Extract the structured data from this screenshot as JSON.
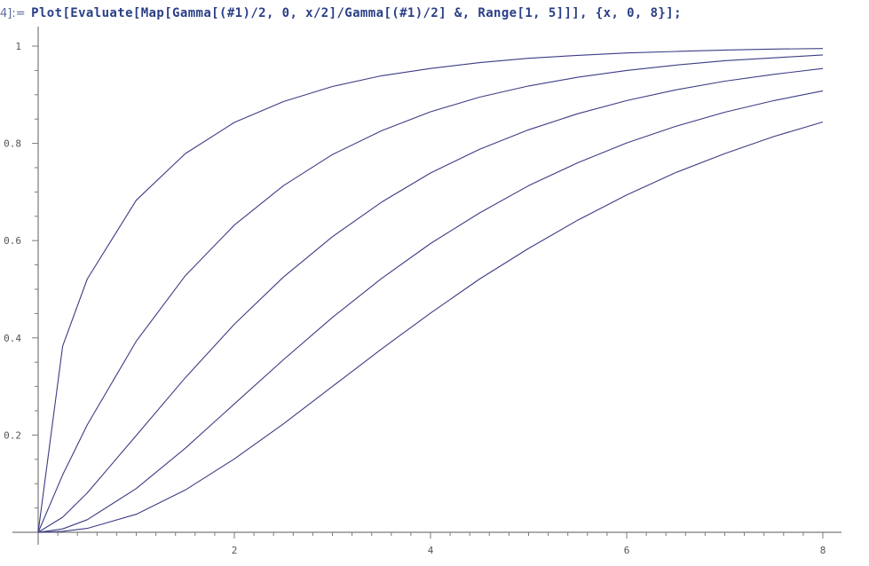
{
  "notebook": {
    "cell_label": "4]:=",
    "input_code": "Plot[Evaluate[Map[Gamma[(#1)/2, 0, x/2]/Gamma[(#1)/2] &, Range[1, 5]]], {x, 0, 8}];"
  },
  "colors": {
    "curve": "#3c3c84",
    "axis": "#7a7a7a",
    "code_text": "#2a3f86",
    "background": "#ffffff"
  },
  "chart_data": {
    "type": "line",
    "title": "",
    "xlabel": "",
    "ylabel": "",
    "xlim": [
      0,
      8.2
    ],
    "ylim": [
      0,
      1.03
    ],
    "x_ticks": [
      2,
      4,
      6,
      8
    ],
    "x_tick_labels": [
      "2",
      "4",
      "6",
      "8"
    ],
    "y_ticks": [
      0.2,
      0.4,
      0.6,
      0.8,
      1
    ],
    "y_tick_labels": [
      "0.2",
      "0.4",
      "0.6",
      "0.8",
      "1"
    ],
    "grid": false,
    "legend": "none",
    "x": [
      0,
      0.25,
      0.5,
      1,
      1.5,
      2,
      2.5,
      3,
      3.5,
      4,
      4.5,
      5,
      5.5,
      6,
      6.5,
      7,
      7.5,
      8
    ],
    "series": [
      {
        "values": [
          0,
          0.383,
          0.521,
          0.683,
          0.779,
          0.843,
          0.886,
          0.917,
          0.939,
          0.954,
          0.966,
          0.975,
          0.981,
          0.986,
          0.989,
          0.992,
          0.994,
          0.995
        ]
      },
      {
        "values": [
          0,
          0.118,
          0.221,
          0.393,
          0.528,
          0.632,
          0.713,
          0.777,
          0.826,
          0.865,
          0.895,
          0.918,
          0.936,
          0.95,
          0.961,
          0.97,
          0.976,
          0.982
        ]
      },
      {
        "values": [
          0,
          0.031,
          0.081,
          0.199,
          0.318,
          0.428,
          0.525,
          0.608,
          0.679,
          0.739,
          0.788,
          0.828,
          0.861,
          0.888,
          0.91,
          0.928,
          0.942,
          0.954
        ]
      },
      {
        "values": [
          0,
          0.007,
          0.026,
          0.09,
          0.173,
          0.264,
          0.355,
          0.442,
          0.522,
          0.594,
          0.657,
          0.713,
          0.76,
          0.801,
          0.835,
          0.864,
          0.888,
          0.908
        ]
      },
      {
        "values": [
          0,
          0.002,
          0.008,
          0.037,
          0.087,
          0.151,
          0.223,
          0.3,
          0.377,
          0.451,
          0.521,
          0.584,
          0.642,
          0.694,
          0.74,
          0.779,
          0.814,
          0.844
        ]
      }
    ]
  }
}
